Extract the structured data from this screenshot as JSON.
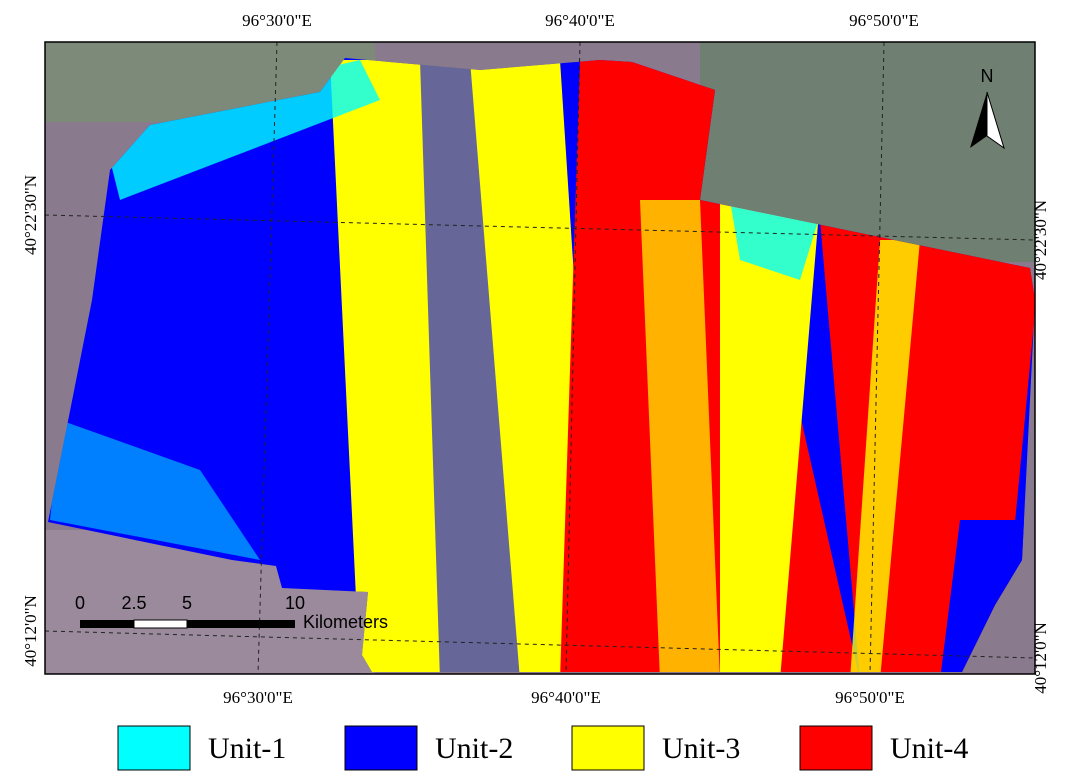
{
  "map": {
    "graticule": {
      "top": [
        "96°30'0\"E",
        "96°40'0\"E",
        "96°50'0\"E"
      ],
      "bottom": [
        "96°30'0\"E",
        "96°40'0\"E",
        "96°50'0\"E"
      ],
      "left": [
        "40°22'30\"N",
        "40°12'0\"N"
      ],
      "right": [
        "40°22'30\"N",
        "40°12'0\"N"
      ]
    },
    "north": "N",
    "scale_bar": {
      "ticks": [
        "0",
        "2.5",
        "5",
        "10"
      ],
      "unit": "Kilometers"
    },
    "legend": [
      {
        "label": "Unit-1",
        "color": "#00ffff"
      },
      {
        "label": "Unit-2",
        "color": "#0000ff"
      },
      {
        "label": "Unit-3",
        "color": "#ffff00"
      },
      {
        "label": "Unit-4",
        "color": "#ff0000"
      }
    ]
  }
}
